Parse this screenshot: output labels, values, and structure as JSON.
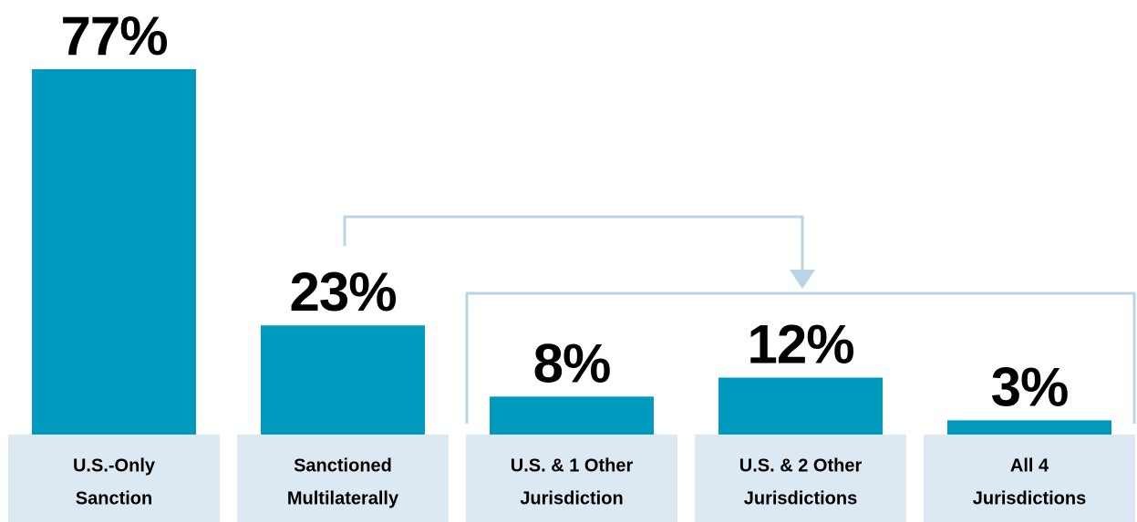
{
  "chart_data": {
    "type": "bar",
    "categories": [
      [
        "U.S.-Only",
        "Sanction"
      ],
      [
        "Sanctioned",
        "Multilaterally"
      ],
      [
        "U.S. & 1 Other",
        "Jurisdiction"
      ],
      [
        "U.S. & 2 Other",
        "Jurisdictions"
      ],
      [
        "All 4",
        "Jurisdictions"
      ]
    ],
    "values": [
      77,
      23,
      8,
      12,
      3
    ],
    "value_labels": [
      "77%",
      "23%",
      "8%",
      "12%",
      "3%"
    ],
    "color": "#009abf"
  }
}
